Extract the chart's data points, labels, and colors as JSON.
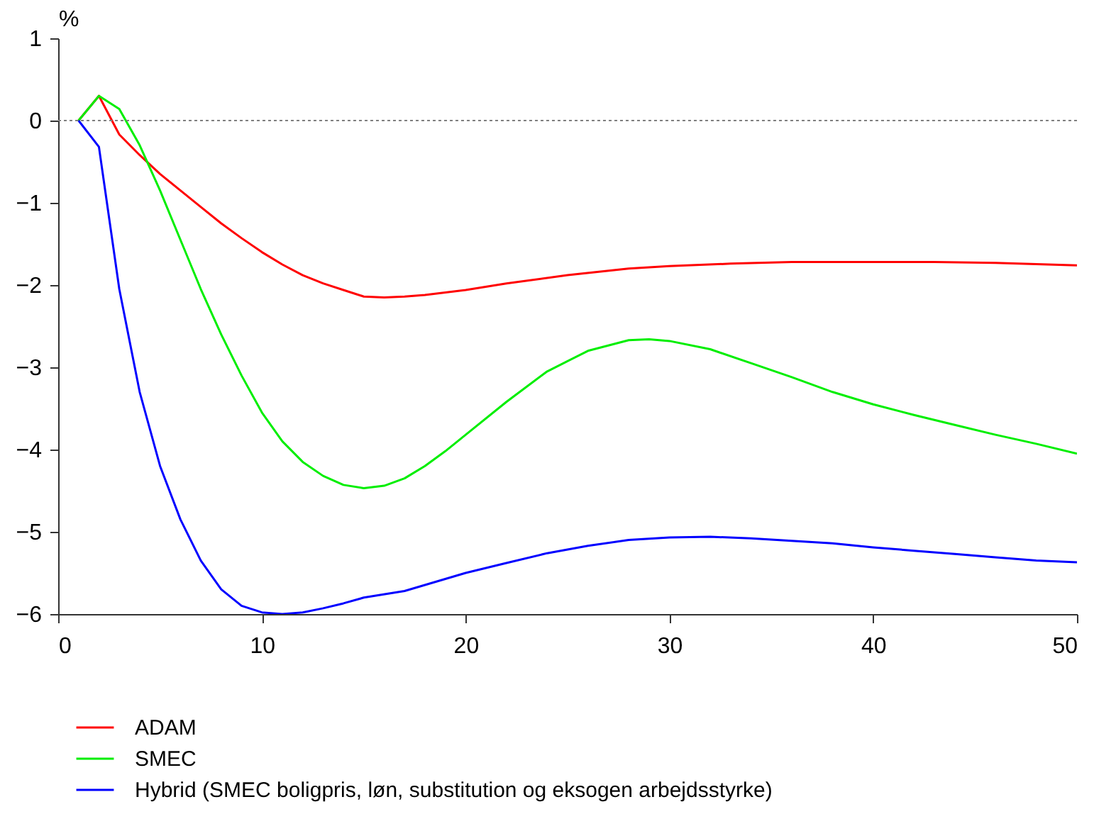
{
  "chart_data": {
    "type": "line",
    "ylabel": "%",
    "xlim": [
      0,
      50
    ],
    "xticks": [
      0,
      10,
      20,
      30,
      40,
      50
    ],
    "ylim": [
      -6,
      1
    ],
    "yticks": [
      -6,
      -5,
      -4,
      -3,
      -2,
      -1,
      0,
      1
    ],
    "legend": "bottom",
    "marker": "none",
    "line_style": "solid",
    "ref_lines": [
      {
        "axis": "y",
        "value": 0,
        "color": "#808080",
        "line_style": "dotted"
      }
    ],
    "series": [
      {
        "name": "ADAM",
        "color": "#ff0000",
        "x": [
          1,
          2,
          3,
          4,
          5,
          6,
          7,
          8,
          9,
          10,
          11,
          12,
          13,
          14,
          15,
          16,
          17,
          18,
          20,
          22,
          25,
          28,
          30,
          33,
          36,
          40,
          43,
          46,
          50
        ],
        "values": [
          0,
          0.3,
          -0.17,
          -0.42,
          -0.65,
          -0.85,
          -1.05,
          -1.25,
          -1.43,
          -1.6,
          -1.75,
          -1.88,
          -1.98,
          -2.06,
          -2.14,
          -2.15,
          -2.14,
          -2.12,
          -2.06,
          -1.98,
          -1.88,
          -1.8,
          -1.77,
          -1.74,
          -1.72,
          -1.72,
          -1.72,
          -1.73,
          -1.76
        ]
      },
      {
        "name": "SMEC",
        "color": "#00ee00",
        "x": [
          1,
          2,
          3,
          4,
          5,
          6,
          7,
          8,
          9,
          10,
          11,
          12,
          13,
          14,
          15,
          16,
          17,
          18,
          19,
          20,
          22,
          24,
          26,
          28,
          29,
          30,
          32,
          34,
          36,
          38,
          40,
          42,
          44,
          46,
          48,
          50
        ],
        "values": [
          0,
          0.3,
          0.14,
          -0.3,
          -0.85,
          -1.45,
          -2.05,
          -2.6,
          -3.1,
          -3.55,
          -3.9,
          -4.15,
          -4.32,
          -4.43,
          -4.47,
          -4.44,
          -4.35,
          -4.2,
          -4.02,
          -3.82,
          -3.42,
          -3.05,
          -2.8,
          -2.67,
          -2.66,
          -2.68,
          -2.78,
          -2.95,
          -3.12,
          -3.3,
          -3.45,
          -3.58,
          -3.7,
          -3.82,
          -3.93,
          -4.05
        ]
      },
      {
        "name": "Hybrid (SMEC boligpris, løn, substitution og eksogen arbejdsstyrke)",
        "color": "#0000ff",
        "x": [
          1,
          2,
          3,
          4,
          5,
          6,
          7,
          8,
          9,
          10,
          11,
          12,
          13,
          14,
          15,
          17,
          20,
          22,
          24,
          26,
          28,
          30,
          32,
          34,
          36,
          38,
          40,
          42,
          44,
          46,
          48,
          50
        ],
        "values": [
          0,
          -0.32,
          -2.05,
          -3.3,
          -4.2,
          -4.85,
          -5.35,
          -5.7,
          -5.9,
          -5.98,
          -6,
          -5.98,
          -5.93,
          -5.87,
          -5.8,
          -5.72,
          -5.5,
          -5.38,
          -5.26,
          -5.17,
          -5.1,
          -5.07,
          -5.06,
          -5.08,
          -5.11,
          -5.14,
          -5.19,
          -5.23,
          -5.27,
          -5.31,
          -5.35,
          -5.37
        ]
      }
    ]
  }
}
